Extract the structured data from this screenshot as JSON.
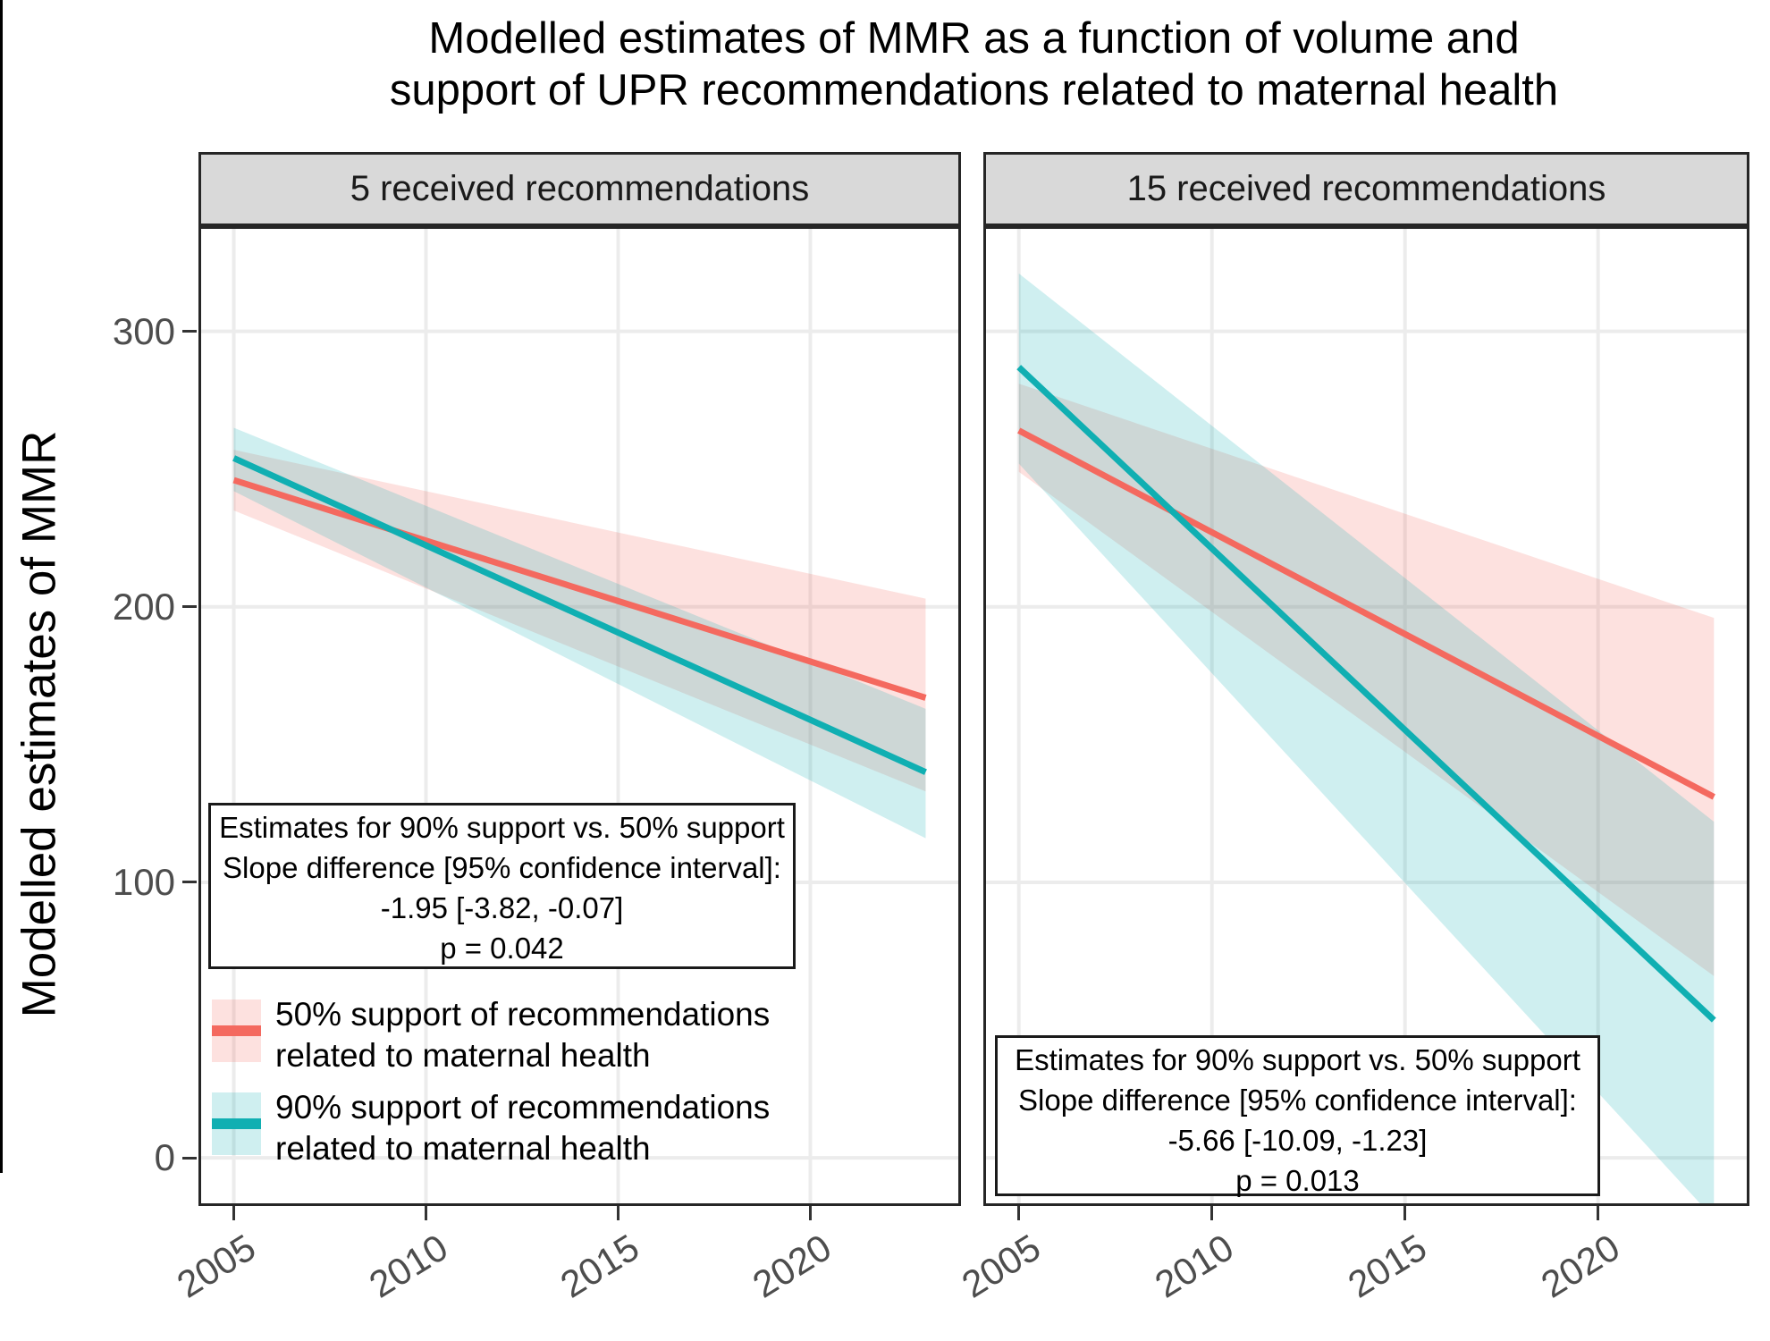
{
  "title": {
    "line1": "Modelled estimates of MMR as a function of volume and",
    "line2": "support of UPR recommendations related to maternal health"
  },
  "y_axis": {
    "label": "Modelled estimates of MMR",
    "ticks": [
      300,
      200,
      100,
      0
    ]
  },
  "x_axis": {
    "ticks": [
      2005,
      2010,
      2015,
      2020
    ]
  },
  "colors": {
    "support_50_line": "#F4695F",
    "support_50_band": "rgba(244,105,95,0.20)",
    "support_90_line": "#10AFB2",
    "support_90_band": "rgba(16,175,178,0.20)",
    "grid": "#ECECEC",
    "strip_bg": "#D9D9D9",
    "panel_border": "#262626",
    "axis_text": "#4D4D4D"
  },
  "legend": {
    "items": [
      {
        "key": "support_50",
        "label_line1": "50% support of recommendations",
        "label_line2": "related to maternal health"
      },
      {
        "key": "support_90",
        "label_line1": "90% support of recommendations",
        "label_line2": "related to maternal health"
      }
    ]
  },
  "chart_data": {
    "type": "line",
    "xlabel": "",
    "ylabel": "Modelled estimates of MMR",
    "xlim": [
      2004.15,
      2023.85
    ],
    "ylim": [
      -16.5,
      337.2
    ],
    "x_ticks": [
      2005,
      2010,
      2015,
      2020
    ],
    "y_ticks": [
      0,
      100,
      200,
      300
    ],
    "grid": "major-only",
    "panels": [
      {
        "strip_label": "5 received recommendations",
        "series": [
          {
            "key": "support_50",
            "name": "50% support of recommendations related to maternal health",
            "points": [
              {
                "year": 2005,
                "mmr": 246,
                "ci_low": 235,
                "ci_high": 257
              },
              {
                "year": 2023,
                "mmr": 167,
                "ci_low": 133,
                "ci_high": 203
              }
            ]
          },
          {
            "key": "support_90",
            "name": "90% support of recommendations related to maternal health",
            "points": [
              {
                "year": 2005,
                "mmr": 254,
                "ci_low": 242,
                "ci_high": 265
              },
              {
                "year": 2023,
                "mmr": 140,
                "ci_low": 116,
                "ci_high": 163
              }
            ]
          }
        ],
        "annotation": {
          "line1": "Estimates for 90% support vs. 50% support",
          "line2": "Slope difference [95% confidence interval]:",
          "line3": "-1.95 [-3.82, -0.07]",
          "line4": "p = 0.042"
        }
      },
      {
        "strip_label": "15 received recommendations",
        "series": [
          {
            "key": "support_50",
            "name": "50% support of recommendations related to maternal health",
            "points": [
              {
                "year": 2005,
                "mmr": 264,
                "ci_low": 249,
                "ci_high": 281
              },
              {
                "year": 2023,
                "mmr": 131,
                "ci_low": 66,
                "ci_high": 196
              }
            ]
          },
          {
            "key": "support_90",
            "name": "90% support of recommendations related to maternal health",
            "points": [
              {
                "year": 2005,
                "mmr": 287,
                "ci_low": 252,
                "ci_high": 321
              },
              {
                "year": 2023,
                "mmr": 50,
                "ci_low": -22,
                "ci_high": 122
              }
            ]
          }
        ],
        "annotation": {
          "line1": "Estimates for 90% support vs. 50% support",
          "line2": "Slope difference [95% confidence interval]:",
          "line3": "-5.66 [-10.09, -1.23]",
          "line4": "p = 0.013"
        }
      }
    ]
  }
}
